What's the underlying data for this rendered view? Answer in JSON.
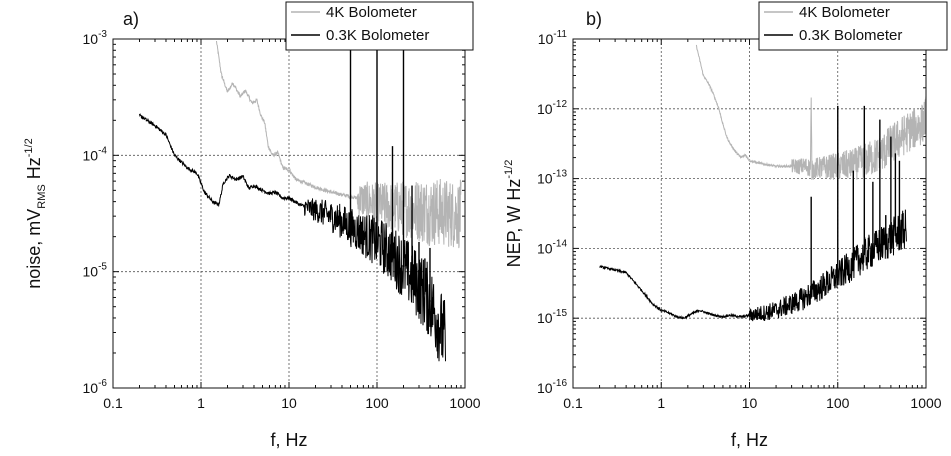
{
  "chart_data": [
    {
      "type": "line",
      "panel_label": "a)",
      "xscale": "log",
      "yscale": "log",
      "xlim": [
        0.1,
        1000
      ],
      "ylim": [
        1e-06,
        0.001
      ],
      "x_ticks": [
        {
          "value": 0.1,
          "label": "0.1"
        },
        {
          "value": 1,
          "label": "1"
        },
        {
          "value": 10,
          "label": "10"
        },
        {
          "value": 100,
          "label": "100"
        },
        {
          "value": 1000,
          "label": "1000"
        }
      ],
      "y_ticks": [
        {
          "value": 1e-06,
          "base": "10",
          "exp": "-6"
        },
        {
          "value": 1e-05,
          "base": "10",
          "exp": "-5"
        },
        {
          "value": 0.0001,
          "base": "10",
          "exp": "-4"
        },
        {
          "value": 0.001,
          "base": "10",
          "exp": "-3"
        }
      ],
      "xlabel": "f, Hz",
      "ylabel": {
        "main": "noise, mV",
        "sub": "RMS",
        "unit": " Hz",
        "sup": "-1/2"
      },
      "grid": "dotted at major ticks",
      "legend_position": "top-right",
      "series": [
        {
          "name": "4K Bolometer",
          "color": "#b4b4b4",
          "points": [
            [
              1.5,
              0.00095
            ],
            [
              1.7,
              0.0005
            ],
            [
              2.0,
              0.00035
            ],
            [
              2.3,
              0.00042
            ],
            [
              2.8,
              0.00032
            ],
            [
              3.2,
              0.00036
            ],
            [
              3.8,
              0.00028
            ],
            [
              4.3,
              0.0003
            ],
            [
              4.8,
              0.00022
            ],
            [
              5.3,
              0.00019
            ],
            [
              5.8,
              0.00012
            ],
            [
              6.5,
              0.0001
            ],
            [
              7.5,
              0.000105
            ],
            [
              8.5,
              7.8e-05
            ],
            [
              10,
              7.5e-05
            ],
            [
              12,
              6.2e-05
            ],
            [
              15,
              5.8e-05
            ],
            [
              18,
              5.5e-05
            ],
            [
              22,
              5.2e-05
            ],
            [
              28,
              4.9e-05
            ],
            [
              35,
              4.7e-05
            ],
            [
              45,
              4.5e-05
            ],
            [
              60,
              4.3e-05
            ],
            [
              80,
              4e-05
            ],
            [
              100,
              3.8e-05
            ],
            [
              150,
              3.6e-05
            ],
            [
              200,
              3.5e-05
            ],
            [
              300,
              3.4e-05
            ],
            [
              400,
              3.3e-05
            ],
            [
              600,
              3.2e-05
            ],
            [
              900,
              3.1e-05
            ]
          ],
          "noise_band": [
            [
              60,
              0.15
            ],
            [
              150,
              0.22
            ],
            [
              400,
              0.3
            ],
            [
              900,
              0.3
            ]
          ],
          "spikes": []
        },
        {
          "name": "0.3K Bolometer",
          "color": "#000000",
          "points": [
            [
              0.2,
              0.00022
            ],
            [
              0.3,
              0.00018
            ],
            [
              0.4,
              0.00015
            ],
            [
              0.5,
              0.0001
            ],
            [
              0.7,
              7.8e-05
            ],
            [
              0.9,
              7e-05
            ],
            [
              1.1,
              4.8e-05
            ],
            [
              1.4,
              3.9e-05
            ],
            [
              1.6,
              3.8e-05
            ],
            [
              1.8,
              5.8e-05
            ],
            [
              2.1,
              6.7e-05
            ],
            [
              2.5,
              6.2e-05
            ],
            [
              3.0,
              6.6e-05
            ],
            [
              3.5,
              5.2e-05
            ],
            [
              4.0,
              5.5e-05
            ],
            [
              5.0,
              5e-05
            ],
            [
              6.0,
              4.7e-05
            ],
            [
              7.0,
              4.8e-05
            ],
            [
              8.5,
              4.3e-05
            ],
            [
              10,
              4.3e-05
            ],
            [
              13,
              3.8e-05
            ],
            [
              17,
              3.5e-05
            ],
            [
              22,
              3.3e-05
            ],
            [
              30,
              3e-05
            ],
            [
              40,
              2.7e-05
            ],
            [
              50,
              2.4e-05
            ],
            [
              70,
              2.1e-05
            ],
            [
              100,
              1.8e-05
            ],
            [
              150,
              1.4e-05
            ],
            [
              200,
              1.1e-05
            ],
            [
              300,
              7.5e-06
            ],
            [
              400,
              5.5e-06
            ],
            [
              500,
              3.7e-06
            ],
            [
              600,
              2.5e-06
            ]
          ],
          "noise_band": [
            [
              15,
              0.08
            ],
            [
              60,
              0.18
            ],
            [
              200,
              0.28
            ],
            [
              600,
              0.35
            ]
          ],
          "spikes": [
            [
              50,
              0.00085
            ],
            [
              100,
              0.00085
            ],
            [
              150,
              0.00012
            ],
            [
              200,
              0.00082
            ],
            [
              250,
              5.5e-05
            ],
            [
              300,
              1.8e-05
            ],
            [
              350,
              1.3e-05
            ],
            [
              400,
              1.6e-05
            ]
          ]
        }
      ]
    },
    {
      "type": "line",
      "panel_label": "b)",
      "xscale": "log",
      "yscale": "log",
      "xlim": [
        0.1,
        1000
      ],
      "ylim": [
        1e-16,
        1e-11
      ],
      "x_ticks": [
        {
          "value": 0.1,
          "label": "0.1"
        },
        {
          "value": 1,
          "label": "1"
        },
        {
          "value": 10,
          "label": "10"
        },
        {
          "value": 100,
          "label": "100"
        },
        {
          "value": 1000,
          "label": "1000"
        }
      ],
      "y_ticks": [
        {
          "value": 1e-16,
          "base": "10",
          "exp": "-16"
        },
        {
          "value": 1e-15,
          "base": "10",
          "exp": "-15"
        },
        {
          "value": 1e-14,
          "base": "10",
          "exp": "-14"
        },
        {
          "value": 1e-13,
          "base": "10",
          "exp": "-13"
        },
        {
          "value": 1e-12,
          "base": "10",
          "exp": "-12"
        },
        {
          "value": 1e-11,
          "base": "10",
          "exp": "-11"
        }
      ],
      "xlabel": "f, Hz",
      "ylabel": {
        "main": "NEP, W Hz",
        "sub": "",
        "unit": "",
        "sup": "-1/2"
      },
      "grid": "dotted at major ticks",
      "legend_position": "top-right",
      "series": [
        {
          "name": "4K Bolometer",
          "color": "#b4b4b4",
          "points": [
            [
              2.5,
              8e-12
            ],
            [
              3.0,
              3e-12
            ],
            [
              3.5,
              2.2e-12
            ],
            [
              4.0,
              1.5e-12
            ],
            [
              4.5,
              1e-12
            ],
            [
              5.0,
              6e-13
            ],
            [
              5.5,
              4e-13
            ],
            [
              6.0,
              3.2e-13
            ],
            [
              7.0,
              2.4e-13
            ],
            [
              8.0,
              2e-13
            ],
            [
              9.0,
              2.2e-13
            ],
            [
              10,
              1.8e-13
            ],
            [
              12,
              1.7e-13
            ],
            [
              15,
              1.6e-13
            ],
            [
              20,
              1.5e-13
            ],
            [
              30,
              1.5e-13
            ],
            [
              45,
              1.5e-13
            ],
            [
              49,
              1.4e-13
            ],
            [
              50,
              1.2e-12
            ],
            [
              51,
              1.3e-13
            ],
            [
              55,
              1.4e-13
            ],
            [
              70,
              1.45e-13
            ],
            [
              100,
              1.5e-13
            ],
            [
              150,
              1.6e-13
            ],
            [
              200,
              1.8e-13
            ],
            [
              300,
              2.2e-13
            ],
            [
              400,
              3e-13
            ],
            [
              600,
              4.5e-13
            ],
            [
              900,
              6e-13
            ],
            [
              1000,
              8e-13
            ]
          ],
          "noise_band": [
            [
              30,
              0.1
            ],
            [
              100,
              0.2
            ],
            [
              400,
              0.3
            ],
            [
              1000,
              0.3
            ]
          ],
          "spikes": []
        },
        {
          "name": "0.3K Bolometer",
          "color": "#000000",
          "points": [
            [
              0.2,
              5.5e-15
            ],
            [
              0.4,
              4.5e-15
            ],
            [
              0.6,
              2.5e-15
            ],
            [
              0.8,
              1.6e-15
            ],
            [
              1.0,
              1.3e-15
            ],
            [
              1.2,
              1.2e-15
            ],
            [
              1.5,
              1.05e-15
            ],
            [
              1.8,
              1e-15
            ],
            [
              2.2,
              1.15e-15
            ],
            [
              2.7,
              1.3e-15
            ],
            [
              3.2,
              1.2e-15
            ],
            [
              4.0,
              1.1e-15
            ],
            [
              5.0,
              1.05e-15
            ],
            [
              6.0,
              1.1e-15
            ],
            [
              8.0,
              1.05e-15
            ],
            [
              10,
              1.1e-15
            ],
            [
              15,
              1.2e-15
            ],
            [
              20,
              1.3e-15
            ],
            [
              30,
              1.6e-15
            ],
            [
              40,
              1.9e-15
            ],
            [
              60,
              2.6e-15
            ],
            [
              100,
              4e-15
            ],
            [
              150,
              6e-15
            ],
            [
              200,
              8e-15
            ],
            [
              300,
              1.1e-14
            ],
            [
              400,
              1.4e-14
            ],
            [
              600,
              1.9e-14
            ]
          ],
          "noise_band": [
            [
              10,
              0.1
            ],
            [
              50,
              0.18
            ],
            [
              200,
              0.25
            ],
            [
              600,
              0.3
            ]
          ],
          "spikes": [
            [
              50,
              5.5e-14
            ],
            [
              100,
              1.1e-12
            ],
            [
              150,
              1.3e-13
            ],
            [
              200,
              1.1e-12
            ],
            [
              250,
              9e-14
            ],
            [
              300,
              7e-13
            ],
            [
              350,
              3e-14
            ],
            [
              400,
              4e-13
            ],
            [
              450,
              2.3e-13
            ],
            [
              500,
              1.8e-13
            ],
            [
              550,
              3.2e-14
            ]
          ]
        }
      ]
    }
  ]
}
